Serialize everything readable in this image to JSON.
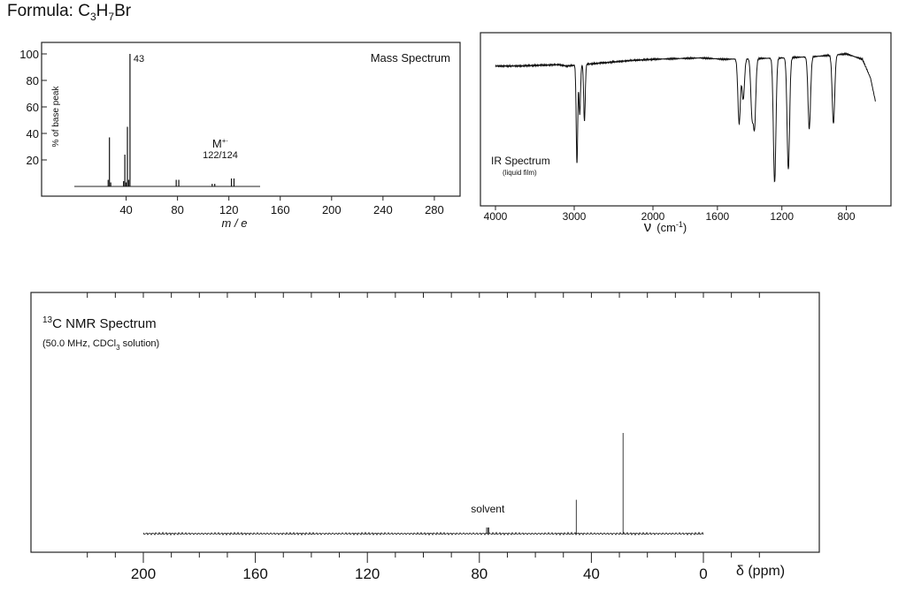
{
  "formula": {
    "label": "Formula: C",
    "c": "3",
    "h": "H",
    "h_n": "7",
    "rest": "Br"
  },
  "colors": {
    "ink": "#111111",
    "frame": "#222222",
    "background": "#ffffff"
  },
  "chart_data": [
    {
      "type": "bar",
      "title": "Mass Spectrum",
      "xlabel": "m / e",
      "ylabel": "% of base peak",
      "xlim": [
        0,
        320
      ],
      "ylim": [
        0,
        100
      ],
      "xticks": [
        40,
        80,
        120,
        160,
        200,
        240,
        280
      ],
      "yticks": [
        20,
        40,
        60,
        80,
        100
      ],
      "peaks": [
        {
          "mz": 26,
          "intensity": 5
        },
        {
          "mz": 27,
          "intensity": 37
        },
        {
          "mz": 28,
          "intensity": 3
        },
        {
          "mz": 38,
          "intensity": 4
        },
        {
          "mz": 39,
          "intensity": 24
        },
        {
          "mz": 40,
          "intensity": 3
        },
        {
          "mz": 41,
          "intensity": 45
        },
        {
          "mz": 42,
          "intensity": 5
        },
        {
          "mz": 43,
          "intensity": 100
        },
        {
          "mz": 79,
          "intensity": 5
        },
        {
          "mz": 81,
          "intensity": 5
        },
        {
          "mz": 107,
          "intensity": 2
        },
        {
          "mz": 109,
          "intensity": 2
        },
        {
          "mz": 122,
          "intensity": 6
        },
        {
          "mz": 124,
          "intensity": 6
        }
      ],
      "annotations": {
        "base_peak_label": "43",
        "base_peak_mz": 43,
        "molecular_ion": "M",
        "molecular_ion_sup": "+·",
        "molecular_ion_mz": "122/124",
        "molecular_ion_at": 122
      }
    },
    {
      "type": "line",
      "title": "IR Spectrum",
      "subtitle": "(liquid film)",
      "xlabel": "ν",
      "xlabel_unit": "(cm",
      "xlabel_unit_sup": "-1",
      "xlabel_unit_end": ")",
      "xticks": [
        4000,
        3000,
        2000,
        1600,
        1200,
        800
      ],
      "axis_breakpoints": [
        4000,
        2000,
        600
      ],
      "xlim": [
        4000,
        600
      ],
      "y_measure": "transmittance %",
      "ylim": [
        0,
        100
      ],
      "baseline": [
        [
          4000,
          91
        ],
        [
          3700,
          91
        ],
        [
          3200,
          92
        ],
        [
          3100,
          91
        ],
        [
          2300,
          95
        ],
        [
          2000,
          96
        ],
        [
          1700,
          97
        ],
        [
          1560,
          96
        ],
        [
          1200,
          97
        ],
        [
          1000,
          98
        ],
        [
          800,
          100
        ],
        [
          700,
          96
        ],
        [
          650,
          82
        ],
        [
          620,
          65
        ]
      ],
      "bands": [
        {
          "wavenumber": 2965,
          "transmittance": 19
        },
        {
          "wavenumber": 2930,
          "transmittance": 55
        },
        {
          "wavenumber": 2870,
          "transmittance": 50
        },
        {
          "wavenumber": 1465,
          "transmittance": 48
        },
        {
          "wavenumber": 1440,
          "transmittance": 66
        },
        {
          "wavenumber": 1385,
          "transmittance": 55
        },
        {
          "wavenumber": 1370,
          "transmittance": 46
        },
        {
          "wavenumber": 1245,
          "transmittance": 4
        },
        {
          "wavenumber": 1160,
          "transmittance": 14
        },
        {
          "wavenumber": 1030,
          "transmittance": 44
        },
        {
          "wavenumber": 880,
          "transmittance": 48
        }
      ]
    },
    {
      "type": "line",
      "title_sup": "13",
      "title": "C NMR Spectrum",
      "subtitle_start": "(50.0 MHz, CDCl",
      "subtitle_sub": "3",
      "subtitle_end": " solution)",
      "xlabel": "δ (ppm)",
      "xlim": [
        200,
        0
      ],
      "xticks": [
        200,
        160,
        120,
        80,
        40,
        0
      ],
      "peaks": [
        {
          "ppm": 77.0,
          "height": 0.06
        },
        {
          "ppm": 45.4,
          "height": 0.33
        },
        {
          "ppm": 28.7,
          "height": 0.98
        }
      ],
      "annotations": {
        "solvent_label": "solvent",
        "solvent_at": 77.0
      }
    }
  ]
}
